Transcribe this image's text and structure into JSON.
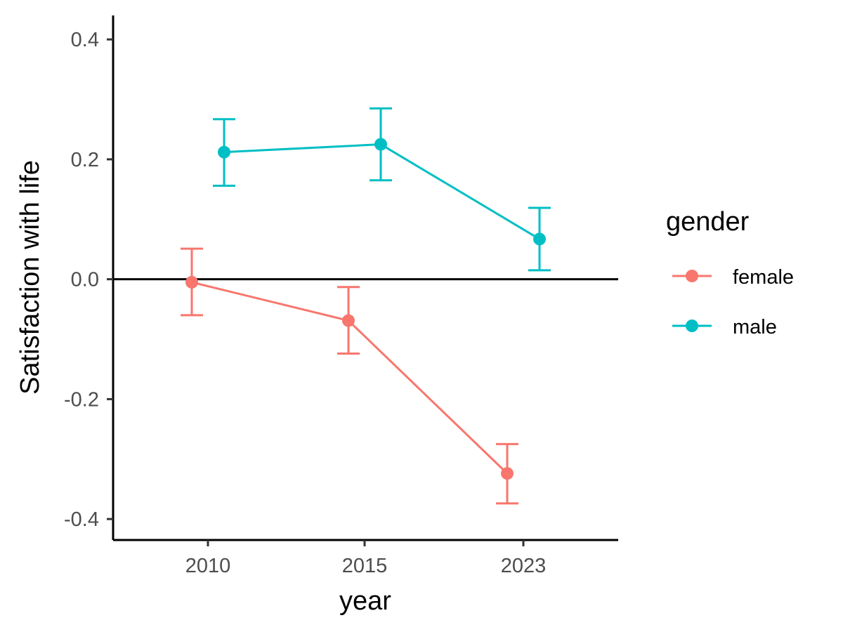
{
  "chart_data": {
    "type": "line",
    "xlabel": "year",
    "ylabel": "Satisfaction with life",
    "categories": [
      "2010",
      "2015",
      "2023"
    ],
    "yticks": [
      "0.4",
      "0.2",
      "0.0",
      "-0.2",
      "-0.4"
    ],
    "ytick_values": [
      0.4,
      0.2,
      0.0,
      -0.2,
      -0.4
    ],
    "ylim": [
      -0.435,
      0.44
    ],
    "reference_line": 0.0,
    "grid": false,
    "legend": {
      "title": "gender",
      "placement": "right"
    },
    "error_bars": true,
    "series": [
      {
        "name": "female",
        "color": "#F8766D",
        "values": [
          -0.005,
          -0.069,
          -0.324
        ],
        "lower": [
          -0.06,
          -0.124,
          -0.374
        ],
        "upper": [
          0.051,
          -0.013,
          -0.275
        ]
      },
      {
        "name": "male",
        "color": "#00BFC4",
        "values": [
          0.212,
          0.225,
          0.067
        ],
        "lower": [
          0.156,
          0.165,
          0.015
        ],
        "upper": [
          0.267,
          0.285,
          0.119
        ]
      }
    ]
  }
}
